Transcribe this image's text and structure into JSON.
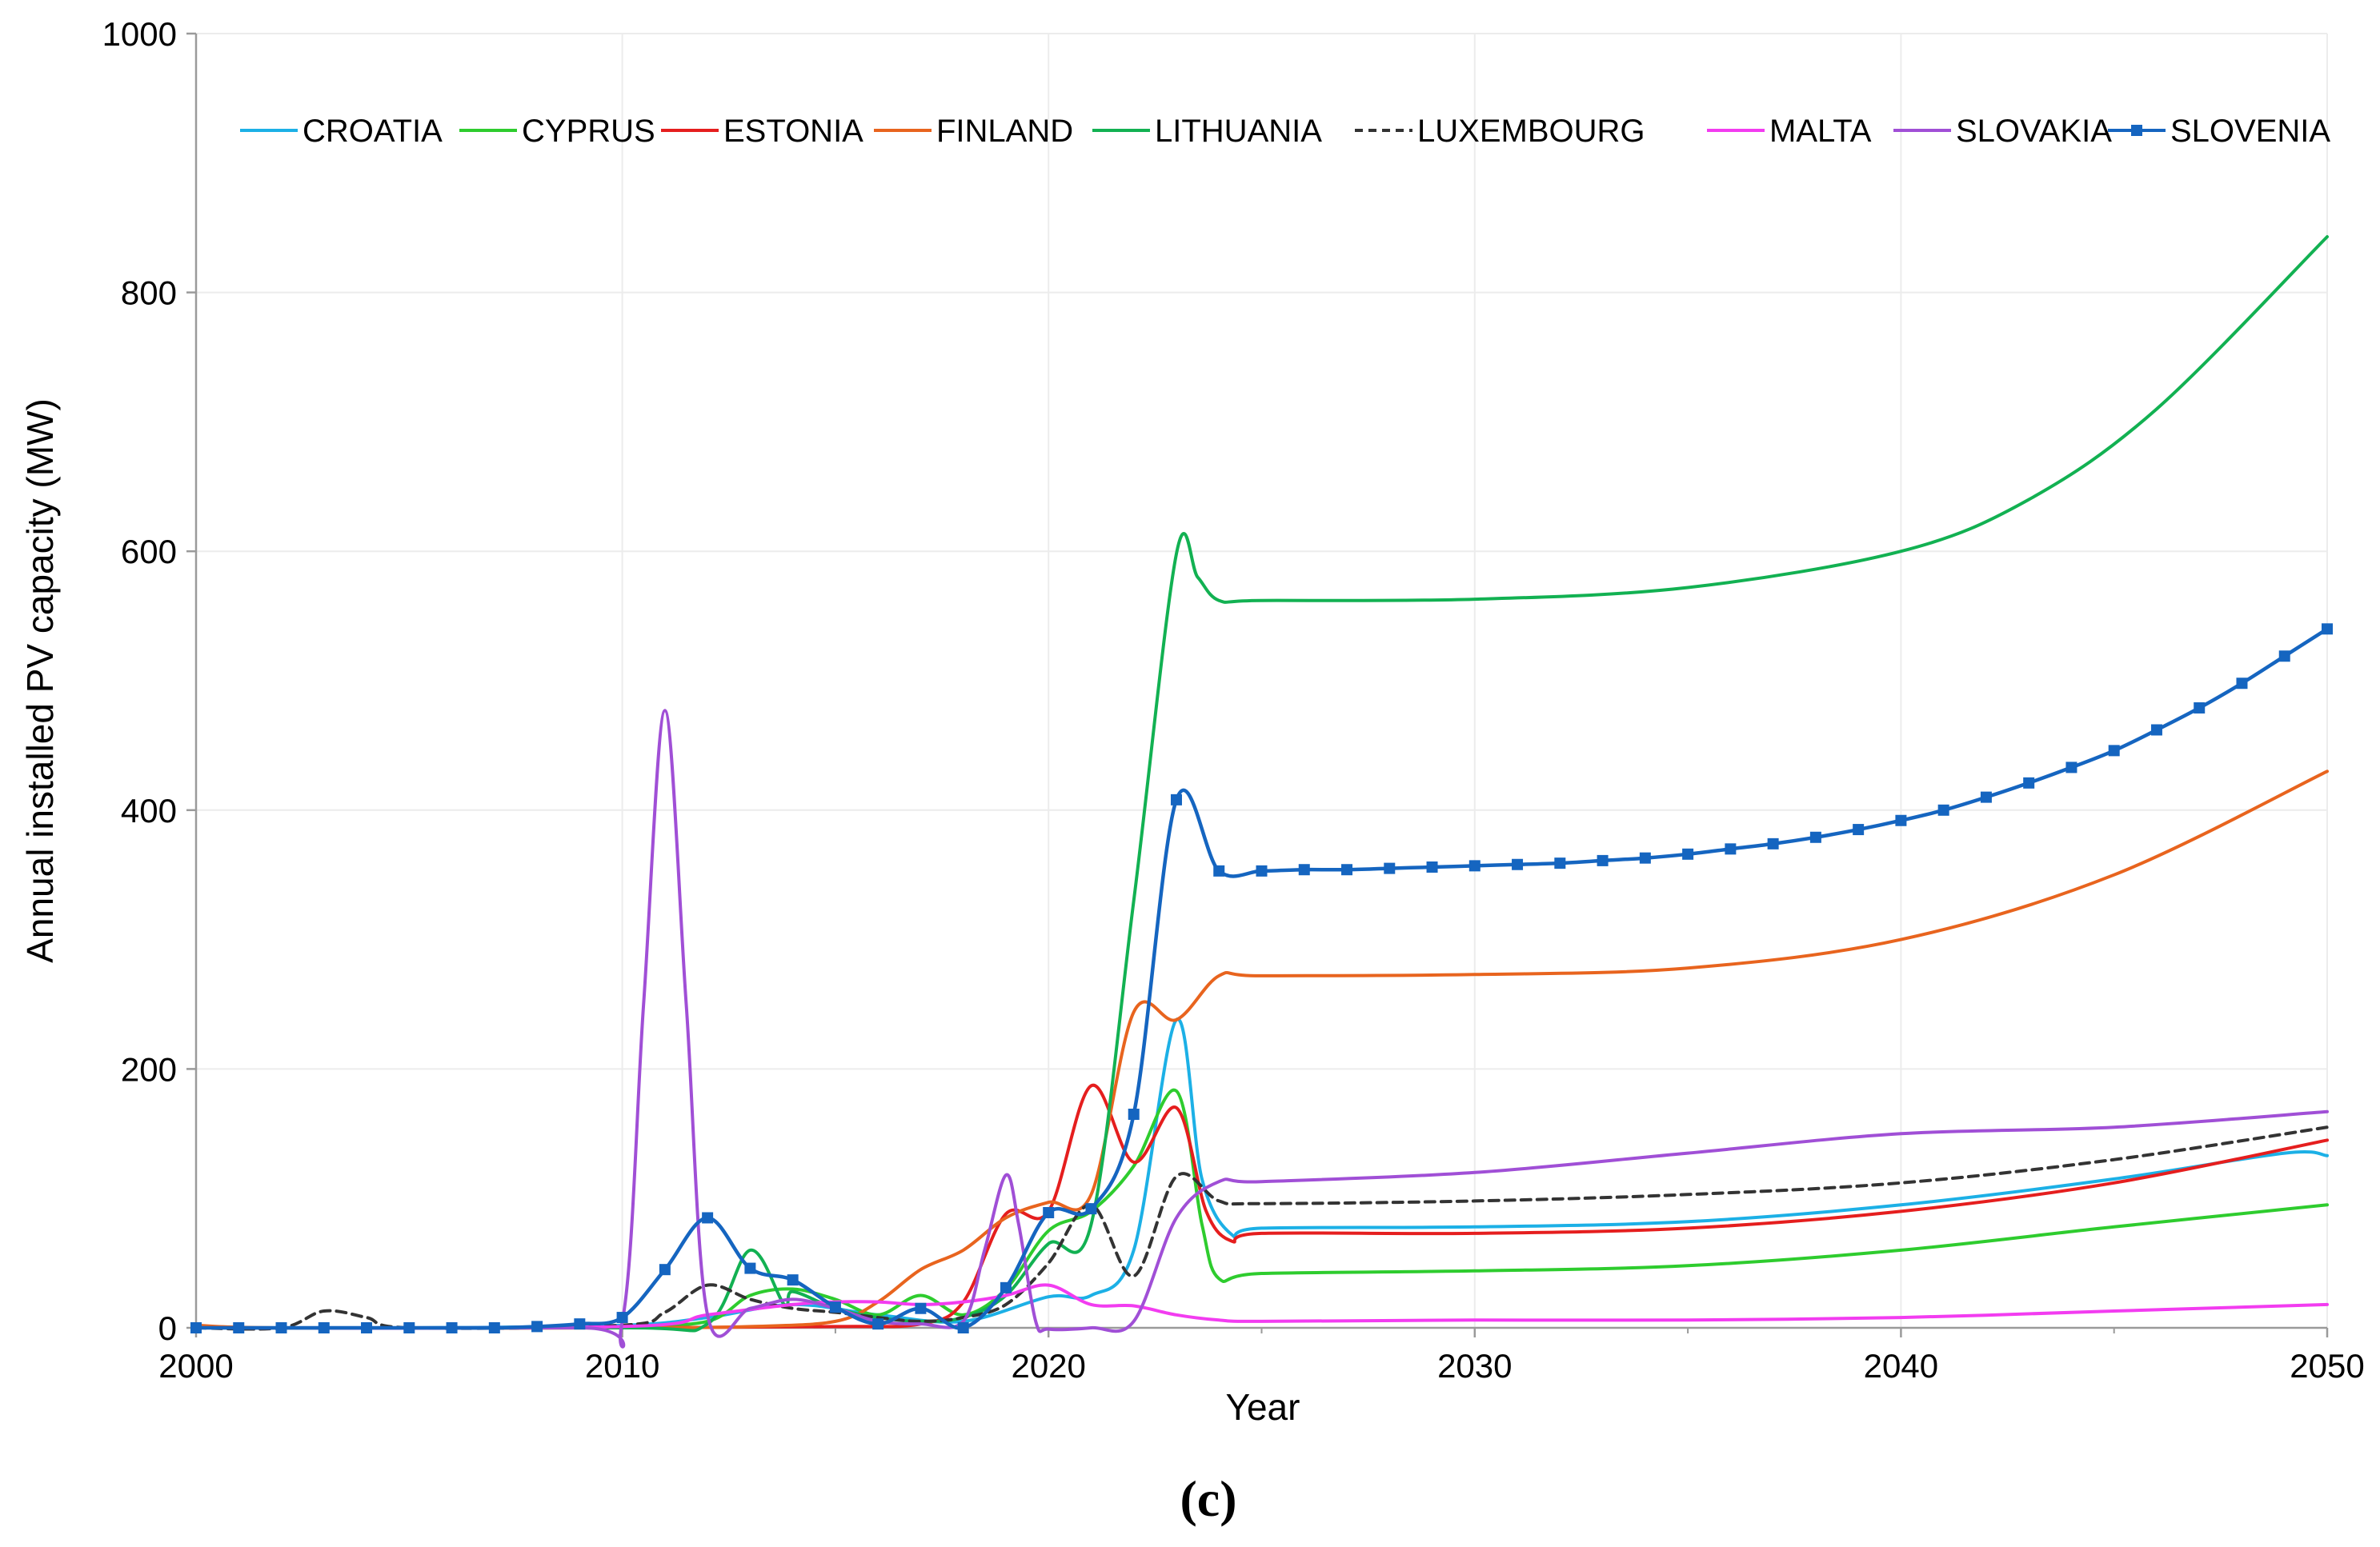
{
  "chart_data": {
    "type": "line",
    "title": "",
    "xlabel": "Year",
    "ylabel": "Annual installed PV capacity (MW)",
    "panel_label": "(c)",
    "xlim": [
      2000,
      2050
    ],
    "ylim": [
      0,
      1000
    ],
    "x_ticks": [
      2000,
      2010,
      2020,
      2030,
      2040,
      2050
    ],
    "y_ticks": [
      0,
      200,
      400,
      600,
      800,
      1000
    ],
    "grid": true,
    "legend_position": "top",
    "series": [
      {
        "name": "CROATIA",
        "color": "#1CB0E6",
        "dash": "solid",
        "marker": "none",
        "points": [
          [
            2000,
            0
          ],
          [
            2005,
            0
          ],
          [
            2010,
            2
          ],
          [
            2012,
            8
          ],
          [
            2014,
            18
          ],
          [
            2016,
            10
          ],
          [
            2018,
            5
          ],
          [
            2020,
            24
          ],
          [
            2021,
            25
          ],
          [
            2022,
            60
          ],
          [
            2023,
            238
          ],
          [
            2023.6,
            115
          ],
          [
            2024.3,
            72
          ],
          [
            2025,
            77
          ],
          [
            2030,
            78
          ],
          [
            2035,
            82
          ],
          [
            2040,
            95
          ],
          [
            2045,
            115
          ],
          [
            2049,
            135
          ],
          [
            2050,
            133
          ]
        ]
      },
      {
        "name": "CYPRUS",
        "color": "#2ECC2E",
        "dash": "solid",
        "marker": "none",
        "points": [
          [
            2000,
            0
          ],
          [
            2008,
            0
          ],
          [
            2010,
            1
          ],
          [
            2012,
            5
          ],
          [
            2013,
            25
          ],
          [
            2014,
            30
          ],
          [
            2015,
            22
          ],
          [
            2016,
            10
          ],
          [
            2017,
            25
          ],
          [
            2018,
            10
          ],
          [
            2019,
            30
          ],
          [
            2020,
            75
          ],
          [
            2021,
            90
          ],
          [
            2022,
            125
          ],
          [
            2023,
            183
          ],
          [
            2023.6,
            80
          ],
          [
            2024,
            38
          ],
          [
            2025,
            42
          ],
          [
            2030,
            44
          ],
          [
            2035,
            48
          ],
          [
            2040,
            60
          ],
          [
            2045,
            78
          ],
          [
            2050,
            95
          ]
        ]
      },
      {
        "name": "ESTONIA",
        "color": "#E51E1E",
        "dash": "solid",
        "marker": "none",
        "points": [
          [
            2000,
            0
          ],
          [
            2010,
            0
          ],
          [
            2015,
            1
          ],
          [
            2017,
            3
          ],
          [
            2018,
            20
          ],
          [
            2019,
            88
          ],
          [
            2020,
            90
          ],
          [
            2021,
            187
          ],
          [
            2022,
            128
          ],
          [
            2023,
            170
          ],
          [
            2023.7,
            90
          ],
          [
            2024.3,
            67
          ],
          [
            2025,
            73
          ],
          [
            2030,
            73
          ],
          [
            2035,
            77
          ],
          [
            2040,
            90
          ],
          [
            2045,
            112
          ],
          [
            2050,
            145
          ]
        ]
      },
      {
        "name": "FINLAND",
        "color": "#E8641E",
        "dash": "solid",
        "marker": "none",
        "points": [
          [
            2000,
            2
          ],
          [
            2002,
            0
          ],
          [
            2010,
            0
          ],
          [
            2013,
            1
          ],
          [
            2015,
            5
          ],
          [
            2016,
            20
          ],
          [
            2017,
            45
          ],
          [
            2018,
            60
          ],
          [
            2019,
            85
          ],
          [
            2020,
            97
          ],
          [
            2021,
            103
          ],
          [
            2022,
            244
          ],
          [
            2023,
            238
          ],
          [
            2024,
            272
          ],
          [
            2025,
            272
          ],
          [
            2030,
            273
          ],
          [
            2035,
            278
          ],
          [
            2040,
            300
          ],
          [
            2045,
            350
          ],
          [
            2050,
            430
          ]
        ]
      },
      {
        "name": "LITHUANIA",
        "color": "#12B152",
        "dash": "solid",
        "marker": "none",
        "points": [
          [
            2000,
            0
          ],
          [
            2010,
            0
          ],
          [
            2012,
            3
          ],
          [
            2013,
            60
          ],
          [
            2013.8,
            18
          ],
          [
            2014,
            28
          ],
          [
            2015,
            15
          ],
          [
            2016,
            8
          ],
          [
            2017,
            5
          ],
          [
            2018,
            8
          ],
          [
            2019,
            25
          ],
          [
            2020,
            65
          ],
          [
            2021,
            80
          ],
          [
            2022,
            330
          ],
          [
            2023,
            598
          ],
          [
            2023.5,
            580
          ],
          [
            2024,
            562
          ],
          [
            2025,
            562
          ],
          [
            2030,
            563
          ],
          [
            2035,
            572
          ],
          [
            2040,
            600
          ],
          [
            2043,
            640
          ],
          [
            2046,
            710
          ],
          [
            2050,
            843
          ]
        ]
      },
      {
        "name": "LUXEMBOURG",
        "color": "#333333",
        "dash": "dashed",
        "marker": "none",
        "points": [
          [
            2000,
            0
          ],
          [
            2002,
            0
          ],
          [
            2003,
            13
          ],
          [
            2004,
            8
          ],
          [
            2005,
            0
          ],
          [
            2010,
            2
          ],
          [
            2011,
            12
          ],
          [
            2012,
            33
          ],
          [
            2013,
            22
          ],
          [
            2014,
            15
          ],
          [
            2015,
            12
          ],
          [
            2016,
            8
          ],
          [
            2017,
            5
          ],
          [
            2018,
            8
          ],
          [
            2019,
            18
          ],
          [
            2020,
            50
          ],
          [
            2021,
            95
          ],
          [
            2022,
            40
          ],
          [
            2023,
            117
          ],
          [
            2024,
            98
          ],
          [
            2025,
            96
          ],
          [
            2030,
            98
          ],
          [
            2035,
            103
          ],
          [
            2040,
            112
          ],
          [
            2045,
            130
          ],
          [
            2050,
            155
          ]
        ]
      },
      {
        "name": "MALTA",
        "color": "#F23CF0",
        "dash": "solid",
        "marker": "none",
        "points": [
          [
            2000,
            0
          ],
          [
            2010,
            1
          ],
          [
            2012,
            10
          ],
          [
            2014,
            18
          ],
          [
            2015,
            20
          ],
          [
            2016,
            20
          ],
          [
            2017,
            18
          ],
          [
            2018,
            20
          ],
          [
            2019,
            25
          ],
          [
            2020,
            33
          ],
          [
            2021,
            18
          ],
          [
            2022,
            17
          ],
          [
            2023,
            10
          ],
          [
            2024,
            6
          ],
          [
            2025,
            5
          ],
          [
            2030,
            6
          ],
          [
            2035,
            6
          ],
          [
            2040,
            8
          ],
          [
            2045,
            13
          ],
          [
            2050,
            18
          ]
        ]
      },
      {
        "name": "SLOVAKIA",
        "color": "#A04FD6",
        "dash": "solid",
        "marker": "none",
        "points": [
          [
            2000,
            0
          ],
          [
            2009,
            0
          ],
          [
            2010,
            5
          ],
          [
            2010.5,
            250
          ],
          [
            2011,
            477
          ],
          [
            2011.5,
            250
          ],
          [
            2012,
            10
          ],
          [
            2013,
            15
          ],
          [
            2014,
            22
          ],
          [
            2015,
            15
          ],
          [
            2016,
            5
          ],
          [
            2017,
            3
          ],
          [
            2018,
            5
          ],
          [
            2018.5,
            60
          ],
          [
            2019,
            118
          ],
          [
            2019.3,
            80
          ],
          [
            2019.7,
            5
          ],
          [
            2020,
            -1
          ],
          [
            2021,
            0
          ],
          [
            2022,
            5
          ],
          [
            2023,
            85
          ],
          [
            2024,
            113
          ],
          [
            2025,
            113
          ],
          [
            2030,
            120
          ],
          [
            2035,
            135
          ],
          [
            2040,
            150
          ],
          [
            2045,
            155
          ],
          [
            2050,
            167
          ]
        ]
      },
      {
        "name": "SLOVENIA",
        "color": "#1565C0",
        "dash": "solid",
        "marker": "square",
        "points": [
          [
            2000,
            0
          ],
          [
            2001,
            0
          ],
          [
            2002,
            0
          ],
          [
            2003,
            0
          ],
          [
            2004,
            0
          ],
          [
            2005,
            0
          ],
          [
            2006,
            0
          ],
          [
            2007,
            0
          ],
          [
            2008,
            1
          ],
          [
            2009,
            3
          ],
          [
            2010,
            8
          ],
          [
            2011,
            45
          ],
          [
            2012,
            85
          ],
          [
            2013,
            46
          ],
          [
            2014,
            37
          ],
          [
            2015,
            16
          ],
          [
            2016,
            3
          ],
          [
            2017,
            15
          ],
          [
            2018,
            0
          ],
          [
            2019,
            31
          ],
          [
            2020,
            89
          ],
          [
            2021,
            92
          ],
          [
            2022,
            165
          ],
          [
            2023,
            408
          ],
          [
            2024,
            353
          ],
          [
            2025,
            353
          ],
          [
            2026,
            354
          ],
          [
            2027,
            354
          ],
          [
            2028,
            355
          ],
          [
            2029,
            356
          ],
          [
            2030,
            357
          ],
          [
            2031,
            358
          ],
          [
            2032,
            359
          ],
          [
            2033,
            361
          ],
          [
            2034,
            363
          ],
          [
            2035,
            366
          ],
          [
            2036,
            370
          ],
          [
            2037,
            374
          ],
          [
            2038,
            379
          ],
          [
            2039,
            385
          ],
          [
            2040,
            392
          ],
          [
            2041,
            400
          ],
          [
            2042,
            410
          ],
          [
            2043,
            421
          ],
          [
            2044,
            433
          ],
          [
            2045,
            446
          ],
          [
            2046,
            462
          ],
          [
            2047,
            479
          ],
          [
            2048,
            498
          ],
          [
            2049,
            519
          ],
          [
            2050,
            540
          ]
        ]
      }
    ]
  }
}
